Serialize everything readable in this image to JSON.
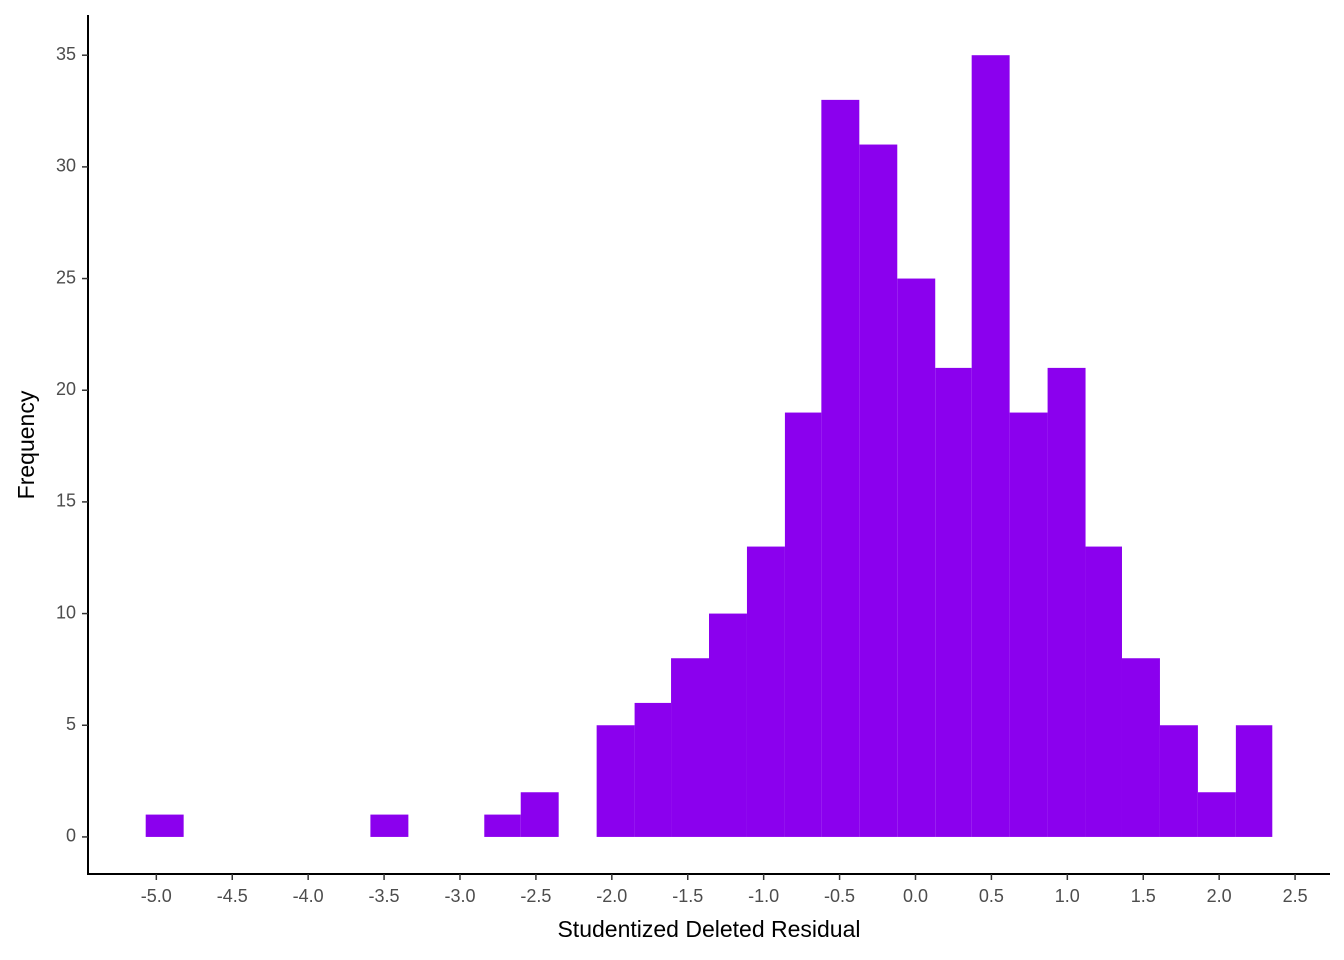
{
  "chart_data": {
    "type": "histogram",
    "x_label": "Studentized Deleted Residual",
    "y_label": "Frequency",
    "color": "#8b00ee",
    "bins": [
      -5.07,
      -4.82,
      -4.58,
      -4.33,
      -4.08,
      -3.83,
      -3.59,
      -3.34,
      -3.09,
      -2.84,
      -2.6,
      -2.35,
      -2.1,
      -1.85,
      -1.61,
      -1.36,
      -1.11,
      -0.86,
      -0.62,
      -0.37,
      -0.12,
      0.13,
      0.37,
      0.62,
      0.87,
      1.12,
      1.36,
      1.61,
      1.86,
      2.11,
      2.35
    ],
    "values": [
      1,
      0,
      0,
      0,
      0,
      0,
      1,
      0,
      0,
      1,
      2,
      0,
      5,
      6,
      8,
      10,
      13,
      19,
      33,
      31,
      25,
      21,
      35,
      19,
      21,
      13,
      8,
      5,
      2,
      5
    ],
    "xlim": [
      -5.45,
      2.73
    ],
    "ylim": [
      -1.66,
      36.8
    ],
    "xticks": [
      {
        "value": -5,
        "label": "-5.0"
      },
      {
        "value": -4.5,
        "label": "-4.5"
      },
      {
        "value": -4,
        "label": "-4.0"
      },
      {
        "value": -3.5,
        "label": "-3.5"
      },
      {
        "value": -3,
        "label": "-3.0"
      },
      {
        "value": -2.5,
        "label": "-2.5"
      },
      {
        "value": -2,
        "label": "-2.0"
      },
      {
        "value": -1.5,
        "label": "-1.5"
      },
      {
        "value": -1,
        "label": "-1.0"
      },
      {
        "value": -0.5,
        "label": "-0.5"
      },
      {
        "value": 0,
        "label": "0.0"
      },
      {
        "value": 0.5,
        "label": "0.5"
      },
      {
        "value": 1,
        "label": "1.0"
      },
      {
        "value": 1.5,
        "label": "1.5"
      },
      {
        "value": 2,
        "label": "2.0"
      },
      {
        "value": 2.5,
        "label": "2.5"
      }
    ],
    "yticks": [
      0,
      5,
      10,
      15,
      20,
      25,
      30,
      35
    ],
    "grid": false
  }
}
